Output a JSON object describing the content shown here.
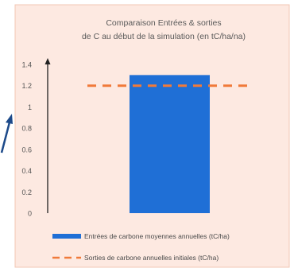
{
  "chart_data": {
    "type": "bar",
    "title_lines": [
      "Comparaison Entrées & sorties",
      "de C au début de la simulation (en tC/ha/na)"
    ],
    "xlabel": "",
    "ylabel": "",
    "ylim": [
      0,
      1.4
    ],
    "yticks": [
      "0",
      "0.2",
      "0.4",
      "0.6",
      "0.8",
      "1",
      "1.2",
      "1.4"
    ],
    "ytick_values": [
      0,
      0.2,
      0.4,
      0.6,
      0.8,
      1,
      1.2,
      1.4
    ],
    "grid": false,
    "legend_position": "bottom",
    "series": [
      {
        "name": "Entrées de carbone moyennes annuelles (tC/ha)",
        "kind": "bar",
        "value": 1.3,
        "color": "#1f6fd6"
      },
      {
        "name": "Sorties de carbone annuelles initiales (tC/ha)",
        "kind": "dashed-line",
        "value": 1.2,
        "color": "#f07a3a"
      }
    ],
    "colors": {
      "panel_background": "#fde9e1",
      "panel_border": "#f2c7b4",
      "axis": "#222222",
      "annotation_arrow": "#1d4a8a"
    }
  }
}
